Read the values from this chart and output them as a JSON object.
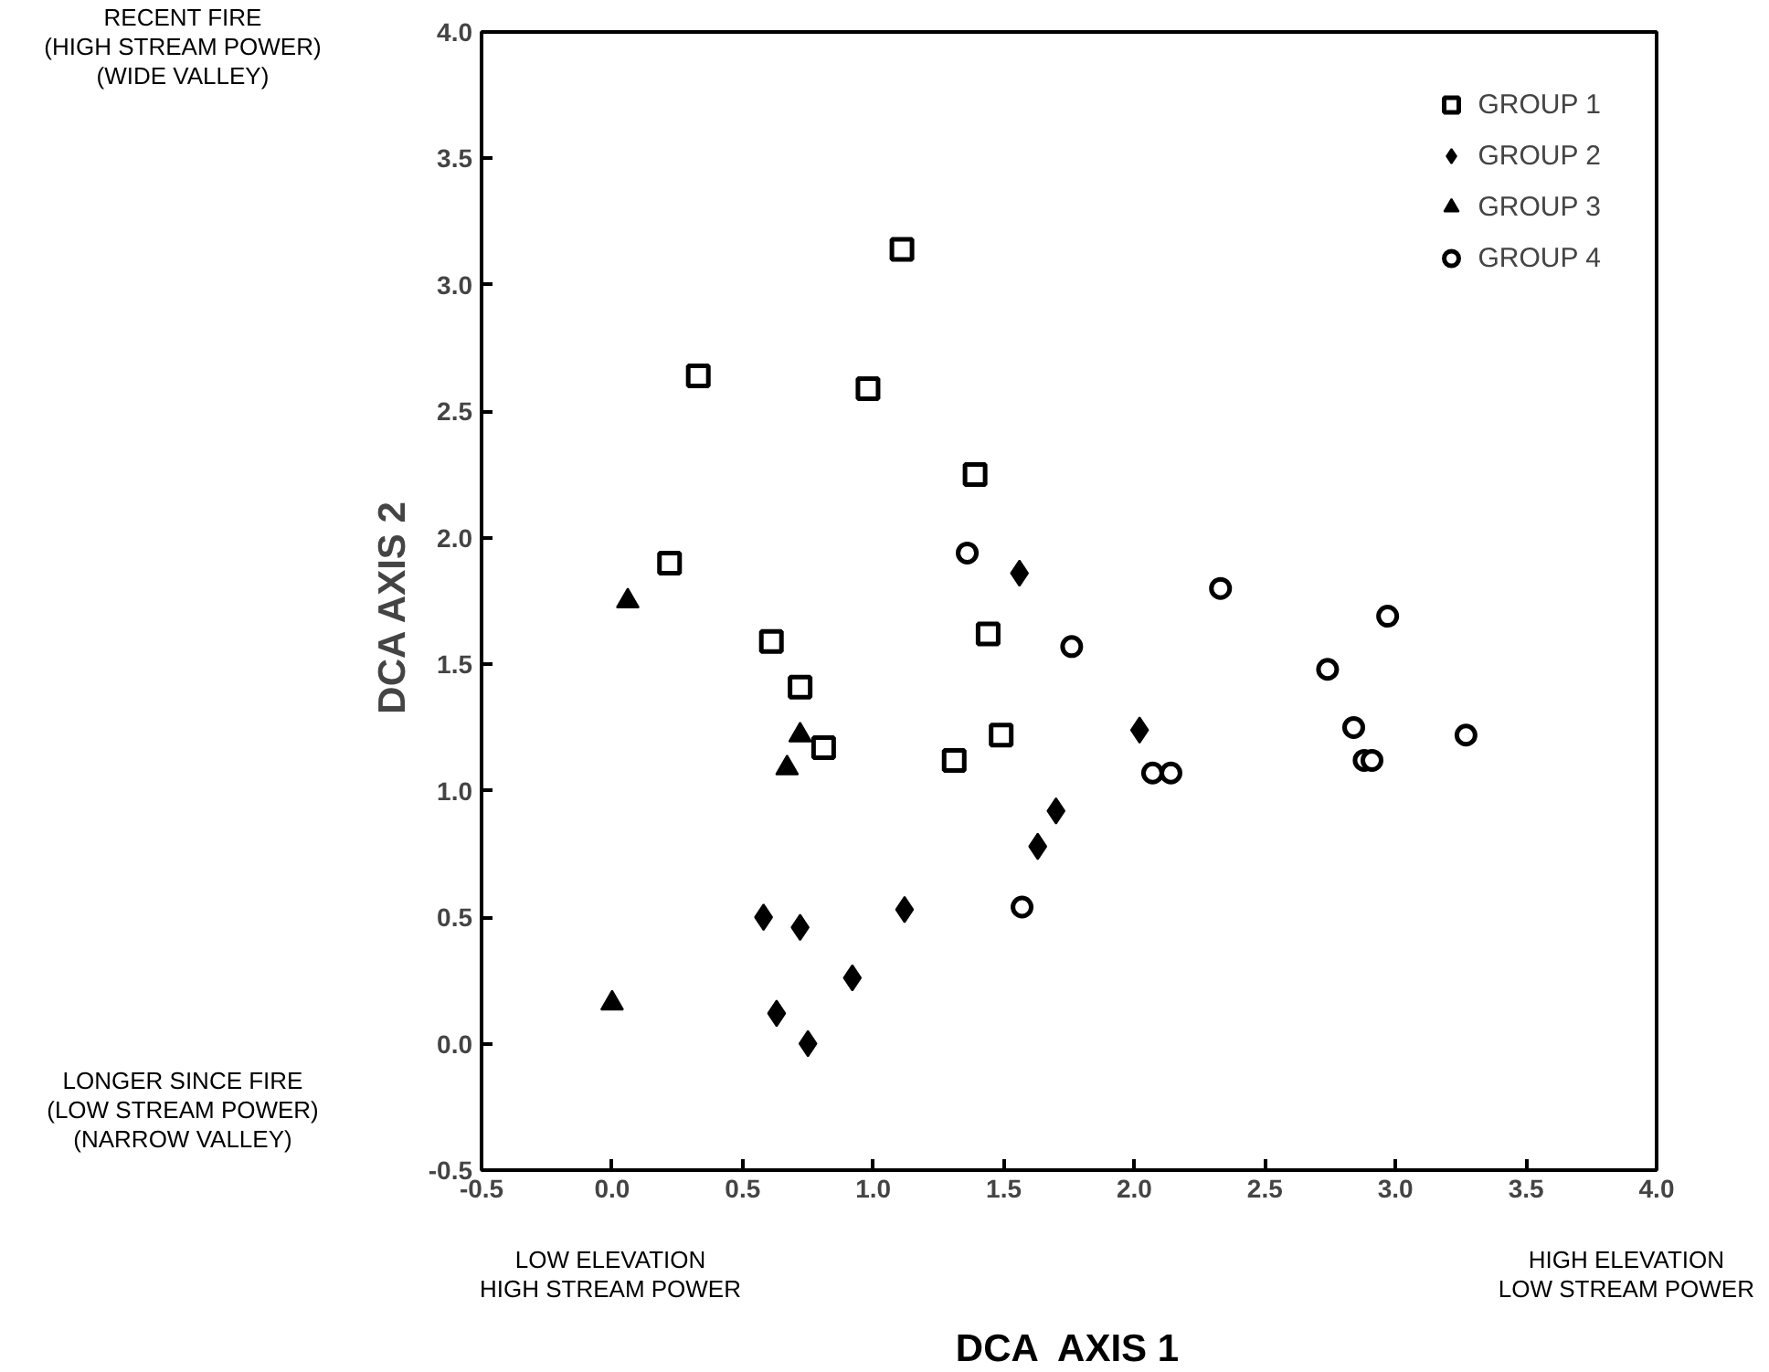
{
  "chart_data": {
    "type": "scatter",
    "xlabel": "DCA  AXIS 1",
    "ylabel": "DCA  AXIS 2",
    "xlim": [
      -0.5,
      4.0
    ],
    "ylim": [
      -0.5,
      4.0
    ],
    "xticks": [
      -0.5,
      {
        "value": 0,
        "label": "0.0"
      },
      0.5,
      {
        "value": 1,
        "label": "1.0"
      },
      1.5,
      {
        "value": 2,
        "label": "2.0"
      },
      2.5,
      {
        "value": 3,
        "label": "3.0"
      },
      3.5,
      {
        "value": 4,
        "label": "4.0"
      }
    ],
    "yticks": [
      -0.5,
      {
        "value": 0,
        "label": "0.0"
      },
      0.5,
      {
        "value": 1,
        "label": "1.0"
      },
      1.5,
      {
        "value": 2,
        "label": "2.0"
      },
      2.5,
      {
        "value": 3,
        "label": "3.0"
      },
      3.5,
      {
        "value": 4,
        "label": "4.0"
      }
    ],
    "grid": false,
    "legend": "top right",
    "series": [
      {
        "name": "GROUP 1",
        "color": "#000000",
        "marker": "square",
        "x": [
          1.11,
          0.33,
          0.98,
          1.39,
          0.22,
          0.61,
          0.72,
          0.81,
          1.44,
          1.49,
          1.31
        ],
        "values": [
          3.14,
          2.64,
          2.59,
          2.25,
          1.9,
          1.59,
          1.41,
          1.17,
          1.62,
          1.22,
          1.12
        ]
      },
      {
        "name": "GROUP 2",
        "color": "#000000",
        "marker": "diamond",
        "x": [
          1.56,
          2.02,
          1.7,
          1.63,
          1.12,
          0.58,
          0.72,
          0.92,
          0.63,
          0.75
        ],
        "values": [
          1.86,
          1.24,
          0.92,
          0.78,
          0.53,
          0.5,
          0.46,
          0.26,
          0.12,
          0.0
        ]
      },
      {
        "name": "GROUP 3",
        "color": "#000000",
        "marker": "triangle",
        "x": [
          0.06,
          0.72,
          0.67,
          0.0
        ],
        "values": [
          1.75,
          1.22,
          1.09,
          0.16
        ]
      },
      {
        "name": "GROUP 4",
        "color": "#000000",
        "marker": "circle",
        "x": [
          1.36,
          1.76,
          2.33,
          2.97,
          2.74,
          2.84,
          3.27,
          2.88,
          2.91,
          2.07,
          2.14,
          1.57
        ],
        "values": [
          1.94,
          1.57,
          1.8,
          1.69,
          1.48,
          1.25,
          1.22,
          1.12,
          1.12,
          1.07,
          1.07,
          0.54
        ]
      }
    ],
    "annotations": [
      "RECENT FIRE\n(HIGH STREAM POWER)\n(WIDE VALLEY)",
      "LONGER SINCE FIRE\n(LOW STREAM POWER)\n(NARROW VALLEY)",
      "LOW ELEVATION\nHIGH STREAM POWER",
      "HIGH ELEVATION\nLOW STREAM POWER"
    ]
  }
}
